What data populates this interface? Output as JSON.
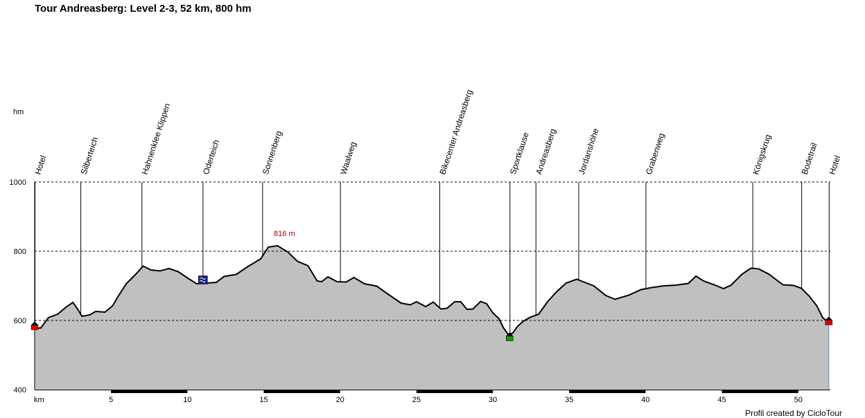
{
  "title": "Tour Andreasberg: Level 2-3, 52 km, 800 hm",
  "y_unit": "hm",
  "x_unit": "km",
  "credit": "Profil created by CicloTour",
  "colors": {
    "fill": "#c0c0c0",
    "line": "#000000",
    "peak_label": "#a00000",
    "start_marker": "#e00000",
    "green_marker": "#1a8a1a",
    "blue_marker": "#1a237e"
  },
  "chart_data": {
    "type": "area",
    "title": "Tour Andreasberg: Level 2-3, 52 km, 800 hm",
    "xlabel": "km",
    "ylabel": "hm",
    "xlim": [
      0,
      52.1
    ],
    "ylim": [
      400,
      1000
    ],
    "x_ticks": [
      5,
      10,
      15,
      20,
      25,
      30,
      35,
      40,
      45,
      50
    ],
    "y_ticks": [
      400,
      600,
      800,
      1000
    ],
    "grid": "horizontal dashed at 600, 800, 1000",
    "peak_annotation": {
      "label": "816 m",
      "x": 15.9,
      "y": 816
    },
    "profile": [
      [
        0,
        578
      ],
      [
        0.4,
        578
      ],
      [
        0.9,
        608
      ],
      [
        1.5,
        618
      ],
      [
        2.1,
        640
      ],
      [
        2.5,
        652
      ],
      [
        2.8,
        634
      ],
      [
        3.1,
        612
      ],
      [
        3.6,
        616
      ],
      [
        4.0,
        626
      ],
      [
        4.6,
        624
      ],
      [
        5.1,
        642
      ],
      [
        5.5,
        672
      ],
      [
        6.0,
        706
      ],
      [
        6.7,
        737
      ],
      [
        7.1,
        757
      ],
      [
        7.6,
        746
      ],
      [
        8.2,
        743
      ],
      [
        8.8,
        750
      ],
      [
        9.4,
        741
      ],
      [
        10.0,
        723
      ],
      [
        10.6,
        706
      ],
      [
        11.0,
        707
      ],
      [
        11.9,
        710
      ],
      [
        12.4,
        727
      ],
      [
        13.2,
        733
      ],
      [
        13.9,
        754
      ],
      [
        14.8,
        778
      ],
      [
        15.3,
        812
      ],
      [
        15.9,
        816
      ],
      [
        16.6,
        797
      ],
      [
        17.2,
        771
      ],
      [
        17.9,
        758
      ],
      [
        18.2,
        736
      ],
      [
        18.5,
        714
      ],
      [
        18.8,
        712
      ],
      [
        19.2,
        726
      ],
      [
        19.8,
        712
      ],
      [
        20.4,
        711
      ],
      [
        20.9,
        724
      ],
      [
        21.6,
        706
      ],
      [
        22.4,
        699
      ],
      [
        23.2,
        674
      ],
      [
        24.0,
        650
      ],
      [
        24.6,
        645
      ],
      [
        25.0,
        654
      ],
      [
        25.6,
        640
      ],
      [
        26.1,
        653
      ],
      [
        26.6,
        633
      ],
      [
        27.0,
        635
      ],
      [
        27.5,
        654
      ],
      [
        27.9,
        654
      ],
      [
        28.3,
        632
      ],
      [
        28.7,
        633
      ],
      [
        29.2,
        655
      ],
      [
        29.6,
        648
      ],
      [
        30.0,
        622
      ],
      [
        30.4,
        605
      ],
      [
        30.7,
        578
      ],
      [
        31.0,
        560
      ],
      [
        31.3,
        563
      ],
      [
        31.6,
        582
      ],
      [
        32.0,
        598
      ],
      [
        32.5,
        610
      ],
      [
        33.0,
        618
      ],
      [
        33.6,
        655
      ],
      [
        34.2,
        684
      ],
      [
        34.8,
        708
      ],
      [
        35.5,
        719
      ],
      [
        35.9,
        712
      ],
      [
        36.6,
        700
      ],
      [
        37.4,
        672
      ],
      [
        38.0,
        661
      ],
      [
        38.9,
        673
      ],
      [
        39.7,
        689
      ],
      [
        40.4,
        695
      ],
      [
        41.2,
        700
      ],
      [
        42.0,
        702
      ],
      [
        42.8,
        707
      ],
      [
        43.3,
        728
      ],
      [
        43.8,
        714
      ],
      [
        44.5,
        703
      ],
      [
        45.1,
        692
      ],
      [
        45.6,
        702
      ],
      [
        46.3,
        733
      ],
      [
        46.9,
        751
      ],
      [
        47.4,
        749
      ],
      [
        48.1,
        733
      ],
      [
        48.6,
        716
      ],
      [
        49.0,
        703
      ],
      [
        49.7,
        701
      ],
      [
        50.2,
        693
      ],
      [
        50.7,
        671
      ],
      [
        51.2,
        643
      ],
      [
        51.6,
        608
      ],
      [
        52.0,
        593
      ]
    ],
    "waypoints": [
      {
        "name": "Hotel",
        "km": 0.0,
        "elev": 585,
        "marker": "red-house"
      },
      {
        "name": "Silberteich",
        "km": 3.0,
        "elev": 612
      },
      {
        "name": "Hahnenklee Klippen",
        "km": 7.0,
        "elev": 757
      },
      {
        "name": "Oderteich",
        "km": 11.0,
        "elev": 717,
        "marker": "blue-lake"
      },
      {
        "name": "Sonnenberg",
        "km": 14.9,
        "elev": 782
      },
      {
        "name": "Waalweg",
        "km": 20.0,
        "elev": 711
      },
      {
        "name": "Bikecenter Andreasberg",
        "km": 26.5,
        "elev": 633
      },
      {
        "name": "Sportklause",
        "km": 31.1,
        "elev": 553,
        "marker": "green-house"
      },
      {
        "name": "Andreasberg",
        "km": 32.8,
        "elev": 614
      },
      {
        "name": "Jordanshöhe",
        "km": 35.6,
        "elev": 718
      },
      {
        "name": "Grabenweg",
        "km": 40.0,
        "elev": 693
      },
      {
        "name": "Königskrug",
        "km": 47.0,
        "elev": 751
      },
      {
        "name": "Bodetrail",
        "km": 50.2,
        "elev": 693
      },
      {
        "name": "Hotel",
        "km": 52.0,
        "elev": 599,
        "marker": "red-house"
      }
    ]
  }
}
